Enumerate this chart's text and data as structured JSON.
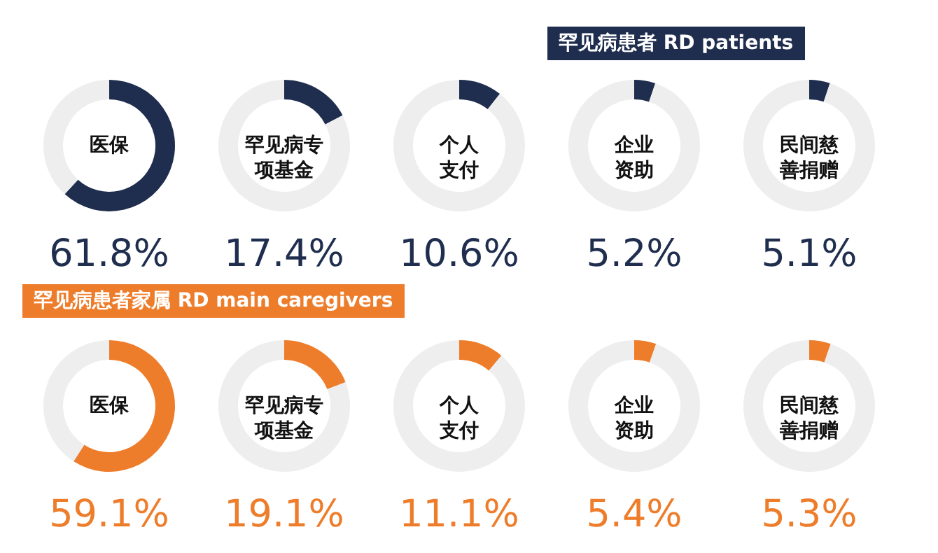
{
  "chart_data": [
    {
      "type": "donut",
      "subtitle": "医保",
      "categories": [
        null,
        null
      ],
      "values": [
        61.8,
        38.2
      ],
      "colors": [
        "#1f2d4e",
        "#eeeeee"
      ],
      "annotations": [
        "61.8%"
      ]
    },
    {
      "type": "donut",
      "subtitle": "罕见病专项基金",
      "categories": [
        null,
        null
      ],
      "values": [
        17.4,
        82.6
      ],
      "colors": [
        "#1f2d4e",
        "#eeeeee"
      ],
      "annotations": [
        "17.4%"
      ]
    },
    {
      "type": "donut",
      "subtitle": "个人支付",
      "categories": [
        null,
        null
      ],
      "values": [
        10.6,
        89.4
      ],
      "colors": [
        "#1f2d4e",
        "#eeeeee"
      ],
      "annotations": [
        "10.6%"
      ]
    },
    {
      "type": "donut",
      "title": "罕见病患者 RD patients",
      "subtitle": "企业资助",
      "categories": [
        null,
        null
      ],
      "values": [
        5.2,
        94.8
      ],
      "colors": [
        "#1f2d4e",
        "#eeeeee"
      ],
      "annotations": [
        "5.2%"
      ]
    },
    {
      "type": "donut",
      "subtitle": "民间慈善捐赠",
      "categories": [
        null,
        null
      ],
      "values": [
        5.1,
        94.9
      ],
      "colors": [
        "#1f2d4e",
        "#eeeeee"
      ],
      "annotations": [
        "5.1%"
      ]
    },
    {
      "type": "donut",
      "title": "罕见病患者家属 RD main caregivers",
      "subtitle": "医保",
      "categories": [
        null,
        null
      ],
      "values": [
        59.1,
        40.9
      ],
      "colors": [
        "#ee7d2b",
        "#eeeeee"
      ],
      "annotations": [
        "59.1%"
      ]
    },
    {
      "type": "donut",
      "subtitle": "罕见病专项基金",
      "categories": [
        null,
        null
      ],
      "values": [
        19.1,
        80.9
      ],
      "colors": [
        "#ee7d2b",
        "#eeeeee"
      ],
      "annotations": [
        "19.1%"
      ]
    },
    {
      "type": "donut",
      "subtitle": "个人支付",
      "categories": [
        null,
        null
      ],
      "values": [
        11.1,
        88.9
      ],
      "colors": [
        "#ee7d2b",
        "#eeeeee"
      ],
      "annotations": [
        "11.1%"
      ]
    },
    {
      "type": "donut",
      "subtitle": "企业资助",
      "categories": [
        null,
        null
      ],
      "values": [
        5.4,
        94.6
      ],
      "colors": [
        "#ee7d2b",
        "#eeeeee"
      ],
      "annotations": [
        "5.4%"
      ]
    },
    {
      "type": "donut",
      "subtitle": "民间慈善捐赠",
      "categories": [
        null,
        null
      ],
      "values": [
        5.3,
        94.7
      ],
      "colors": [
        "#ee7d2b",
        "#eeeeee"
      ],
      "annotations": [
        "5.3%"
      ]
    }
  ]
}
